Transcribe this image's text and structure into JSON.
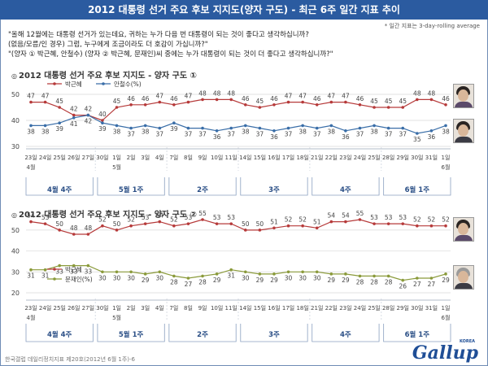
{
  "header": {
    "title": "2012 대통령 선거 주요 후보 지지도(양자 구도) - 최근 6주 일간 지표 추이",
    "note": "* 일간 지표는 3-day-rolling average"
  },
  "question": {
    "line1": "\"올해 12월에는 대통령 선거가 있는데요, 귀하는 누가 다음 번 대통령이 되는 것이 좋다고 생각하십니까?",
    "line2": "(없음/모름/인 경우) 그럼, 누구에게 조금이라도 더 호감이 가십니까?\"",
    "line3": "\"(양자 ① 박근혜, 안철수) (양자 ② 박근혜, 문재인)씨 중에는 누가 대통령이 되는 것이 더 좋다고 생각하십니까?\""
  },
  "x_axis": {
    "days": [
      "23일",
      "24일",
      "25일",
      "26일",
      "27일",
      "30일",
      "1일",
      "2일",
      "3일",
      "4일",
      "7일",
      "8일",
      "9일",
      "10일",
      "11일",
      "14일",
      "15일",
      "16일",
      "17일",
      "18일",
      "21일",
      "22일",
      "23일",
      "24일",
      "25일",
      "28일",
      "29일",
      "30일",
      "31일",
      "1일"
    ],
    "month_labels": [
      {
        "text": "4월",
        "index": 0
      },
      {
        "text": "5월",
        "index": 6
      },
      {
        "text": "6월",
        "index": 29
      }
    ],
    "weeks": [
      "4월 4주",
      "5월 1주",
      "2주",
      "3주",
      "4주",
      "6월 1주"
    ],
    "week_spans": [
      [
        0,
        4
      ],
      [
        5,
        9
      ],
      [
        10,
        14
      ],
      [
        15,
        19
      ],
      [
        20,
        24
      ],
      [
        25,
        29
      ]
    ]
  },
  "chart_data": [
    {
      "type": "line",
      "title": "2012 대통령 선거 주요 후보 지지도 - 양자 구도 ①",
      "title_prefix": "◎",
      "ylim": [
        30,
        55
      ],
      "yticks": [
        30,
        40,
        50
      ],
      "categories": [
        "4/23",
        "4/24",
        "4/25",
        "4/26",
        "4/27",
        "4/30",
        "5/1",
        "5/2",
        "5/3",
        "5/4",
        "5/7",
        "5/8",
        "5/9",
        "5/10",
        "5/11",
        "5/14",
        "5/15",
        "5/16",
        "5/17",
        "5/18",
        "5/21",
        "5/22",
        "5/23",
        "5/24",
        "5/25",
        "5/28",
        "5/29",
        "5/30",
        "5/31",
        "6/1"
      ],
      "series": [
        {
          "name": "박근혜",
          "color": "#b63a3a",
          "values": [
            47,
            47,
            45,
            42,
            42,
            40,
            45,
            46,
            46,
            47,
            46,
            47,
            48,
            48,
            48,
            46,
            45,
            46,
            47,
            47,
            46,
            47,
            47,
            46,
            45,
            45,
            45,
            48,
            48,
            46
          ]
        },
        {
          "name": "안철수(%)",
          "color": "#3a6ea8",
          "values": [
            38,
            38,
            39,
            41,
            42,
            39,
            38,
            37,
            38,
            37,
            39,
            37,
            37,
            36,
            37,
            38,
            37,
            36,
            37,
            38,
            37,
            38,
            36,
            37,
            38,
            37,
            37,
            35,
            36,
            38
          ]
        }
      ],
      "legend": "top-left"
    },
    {
      "type": "line",
      "title": "2012 대통령 선거 주요 후보 지지도 - 양자 구도 ②",
      "title_prefix": "◎",
      "ylim": [
        20,
        55
      ],
      "yticks": [
        20,
        30,
        40,
        50
      ],
      "categories": [
        "4/23",
        "4/24",
        "4/25",
        "4/26",
        "4/27",
        "4/30",
        "5/1",
        "5/2",
        "5/3",
        "5/4",
        "5/7",
        "5/8",
        "5/9",
        "5/10",
        "5/11",
        "5/14",
        "5/15",
        "5/16",
        "5/17",
        "5/18",
        "5/21",
        "5/22",
        "5/23",
        "5/24",
        "5/25",
        "5/28",
        "5/29",
        "5/30",
        "5/31",
        "6/1"
      ],
      "series": [
        {
          "name": "박근혜",
          "color": "#b63a3a",
          "values": [
            54,
            53,
            50,
            48,
            48,
            52,
            50,
            52,
            53,
            54,
            52,
            53,
            55,
            53,
            53,
            50,
            50,
            51,
            52,
            52,
            51,
            54,
            54,
            55,
            53,
            53,
            53,
            52,
            52,
            52
          ]
        },
        {
          "name": "문재인(%)",
          "color": "#8a9a3a",
          "values": [
            31,
            31,
            33,
            33,
            33,
            30,
            30,
            30,
            29,
            30,
            28,
            27,
            28,
            29,
            31,
            30,
            29,
            29,
            30,
            30,
            30,
            29,
            29,
            28,
            28,
            28,
            26,
            27,
            27,
            29
          ]
        }
      ],
      "legend": "lower-left"
    }
  ],
  "footer": {
    "source": "한국갤럽 데일리정치지표 제20호(2012년 6월 1주)-6",
    "logo": "Gallup",
    "logo_small": "KOREA"
  }
}
